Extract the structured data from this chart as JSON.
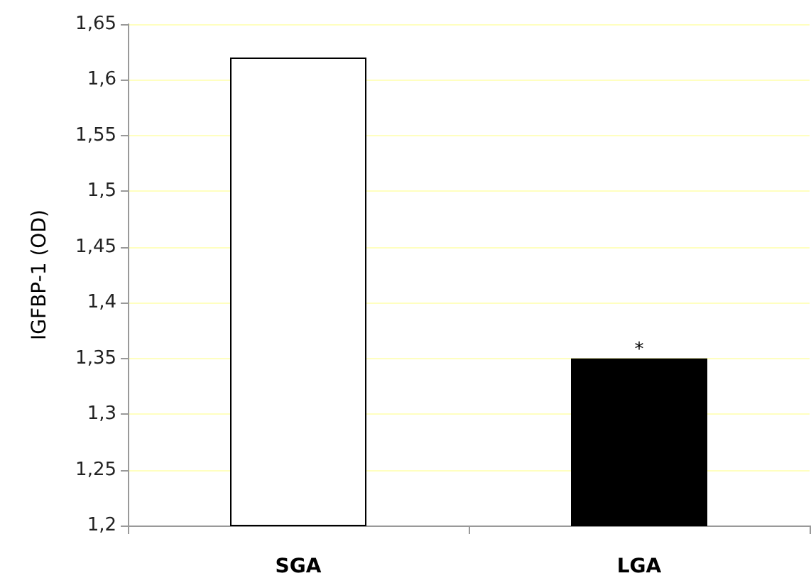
{
  "chart_data": {
    "type": "bar",
    "ylabel": "IGFBP-1 (OD)",
    "categories": [
      "SGA",
      "LGA"
    ],
    "values": [
      1.62,
      1.35
    ],
    "colors": [
      "#ffffff",
      "#000000"
    ],
    "ylim": [
      1.2,
      1.65
    ],
    "yticks": [
      {
        "value": 1.2,
        "label": "1,2"
      },
      {
        "value": 1.25,
        "label": "1,25"
      },
      {
        "value": 1.3,
        "label": "1,3"
      },
      {
        "value": 1.35,
        "label": "1,35"
      },
      {
        "value": 1.4,
        "label": "1,4"
      },
      {
        "value": 1.45,
        "label": "1,45"
      },
      {
        "value": 1.5,
        "label": "1,5"
      },
      {
        "value": 1.55,
        "label": "1,55"
      },
      {
        "value": 1.6,
        "label": "1,6"
      },
      {
        "value": 1.65,
        "label": "1,65"
      }
    ],
    "grid": "y",
    "annotations": [
      "*"
    ]
  }
}
